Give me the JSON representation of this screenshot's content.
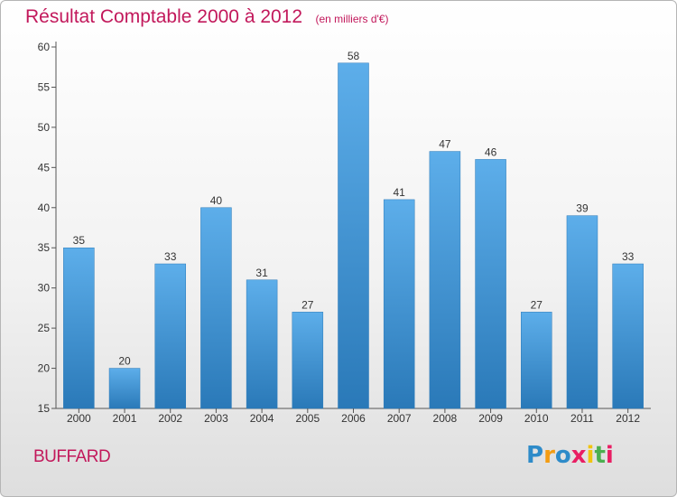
{
  "title": "Résultat Comptable 2000 à 2012",
  "unit": "(en milliers d'€)",
  "commune": "BUFFARD",
  "brand": {
    "letters": [
      "P",
      "r",
      "o",
      "x",
      "i",
      "t",
      "i"
    ],
    "colors": [
      "#2e8bc9",
      "#f39c12",
      "#2e8bc9",
      "#e91e63",
      "#f1c40f",
      "#4caf50",
      "#e91e63"
    ]
  },
  "colors": {
    "bar": "#4a9fe0",
    "title": "#c2185b"
  },
  "chart_data": {
    "type": "bar",
    "title": "Résultat Comptable 2000 à 2012",
    "subtitle": "(en milliers d'€)",
    "xlabel": "",
    "ylabel": "",
    "categories": [
      "2000",
      "2001",
      "2002",
      "2003",
      "2004",
      "2005",
      "2006",
      "2007",
      "2008",
      "2009",
      "2010",
      "2011",
      "2012"
    ],
    "values": [
      35,
      20,
      33,
      40,
      31,
      27,
      58,
      41,
      47,
      46,
      27,
      39,
      33
    ],
    "ylim": [
      15,
      60
    ],
    "yticks": [
      15,
      20,
      25,
      30,
      35,
      40,
      45,
      50,
      55,
      60
    ],
    "grid": false,
    "legend": "none"
  }
}
